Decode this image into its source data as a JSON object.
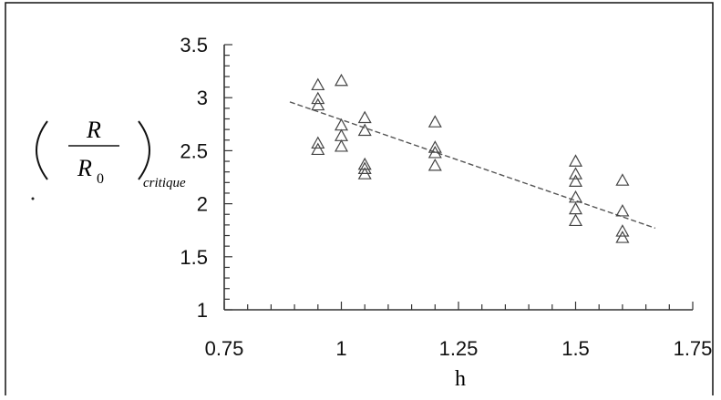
{
  "chart_data": {
    "type": "scatter",
    "title": "",
    "xlabel": "h",
    "ylabel": {
      "numerator": "R",
      "denominator": "R",
      "denominator_subscript": "0",
      "subscript": "critique"
    },
    "xlim": [
      0.75,
      1.75
    ],
    "ylim": [
      1,
      3.5
    ],
    "x_ticks": [
      "0.75",
      "1",
      "1.25",
      "1.5",
      "1.75"
    ],
    "y_ticks": [
      "1",
      "1.5",
      "2",
      "2.5",
      "3",
      "3.5"
    ],
    "grid": false,
    "legend": "none",
    "marker": "open-triangle",
    "colors": {
      "marker": "#444444",
      "axis": "#333333",
      "trend": "#555555",
      "frame": "#111111"
    },
    "points": [
      {
        "x": 0.95,
        "y": 3.12
      },
      {
        "x": 0.95,
        "y": 2.99
      },
      {
        "x": 0.95,
        "y": 2.93
      },
      {
        "x": 0.95,
        "y": 2.57
      },
      {
        "x": 0.95,
        "y": 2.51
      },
      {
        "x": 1.0,
        "y": 3.16
      },
      {
        "x": 1.0,
        "y": 2.74
      },
      {
        "x": 1.0,
        "y": 2.64
      },
      {
        "x": 1.0,
        "y": 2.54
      },
      {
        "x": 1.05,
        "y": 2.81
      },
      {
        "x": 1.05,
        "y": 2.69
      },
      {
        "x": 1.05,
        "y": 2.37
      },
      {
        "x": 1.05,
        "y": 2.33
      },
      {
        "x": 1.05,
        "y": 2.28
      },
      {
        "x": 1.2,
        "y": 2.77
      },
      {
        "x": 1.2,
        "y": 2.53
      },
      {
        "x": 1.2,
        "y": 2.48
      },
      {
        "x": 1.2,
        "y": 2.36
      },
      {
        "x": 1.5,
        "y": 2.4
      },
      {
        "x": 1.5,
        "y": 2.28
      },
      {
        "x": 1.5,
        "y": 2.21
      },
      {
        "x": 1.5,
        "y": 2.06
      },
      {
        "x": 1.5,
        "y": 1.95
      },
      {
        "x": 1.5,
        "y": 1.84
      },
      {
        "x": 1.6,
        "y": 2.22
      },
      {
        "x": 1.6,
        "y": 1.93
      },
      {
        "x": 1.6,
        "y": 1.74
      },
      {
        "x": 1.6,
        "y": 1.68
      }
    ],
    "trendline": {
      "style": "dashed",
      "x": [
        0.89,
        1.67
      ],
      "y": [
        2.96,
        1.77
      ]
    }
  }
}
